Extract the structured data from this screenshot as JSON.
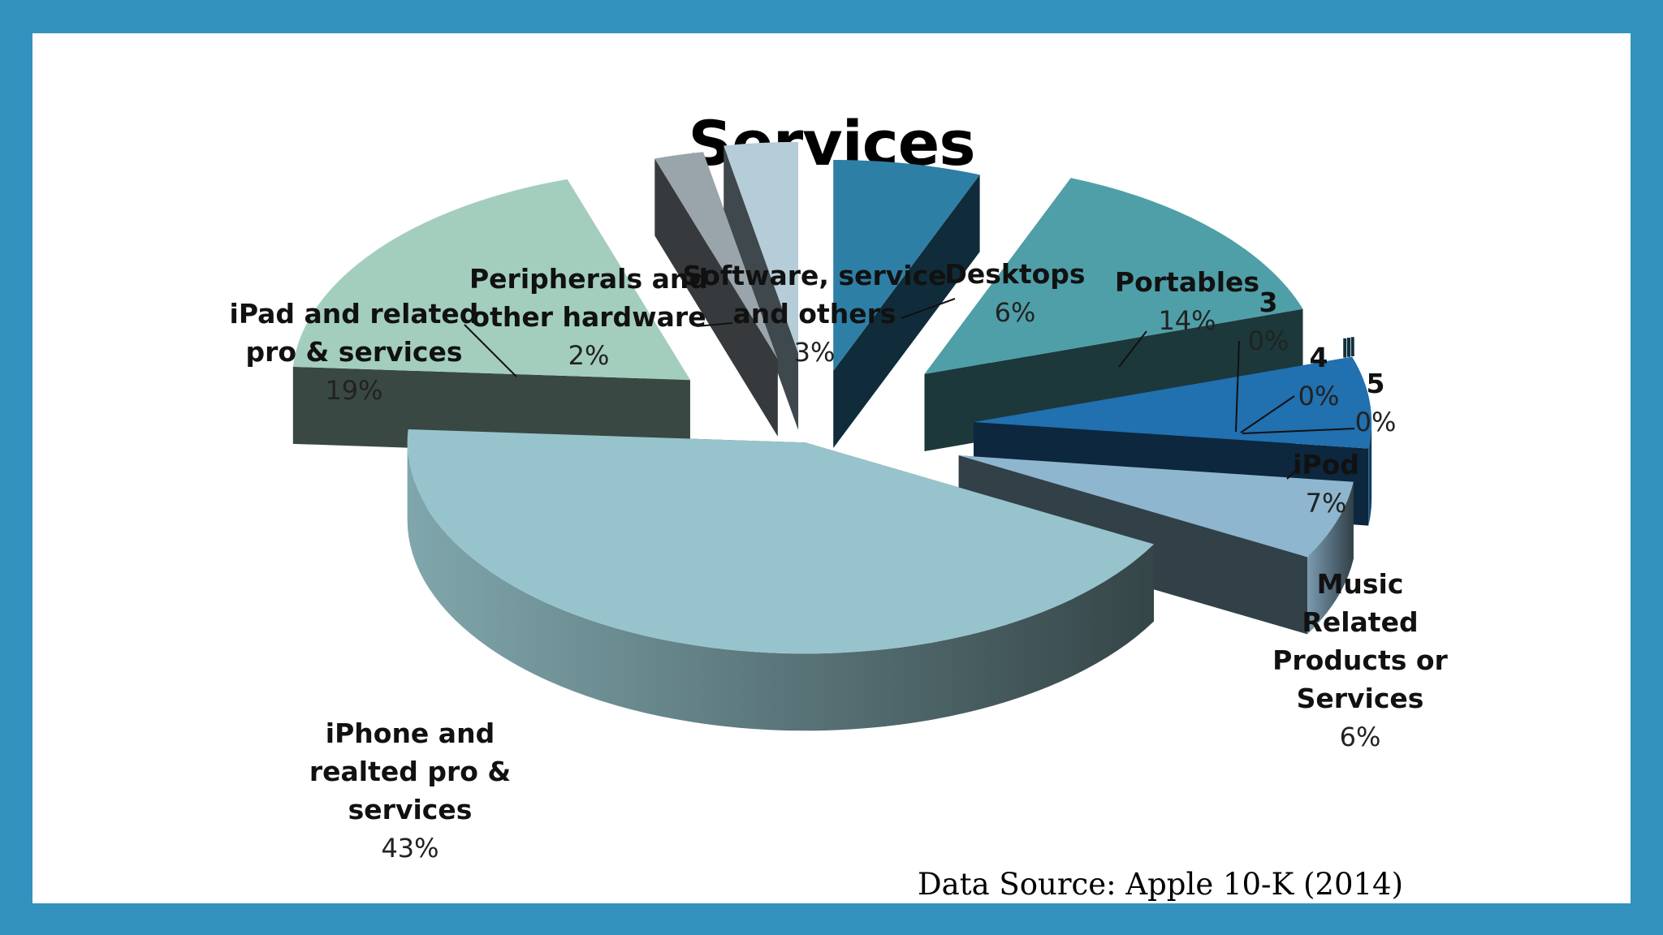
{
  "slide": {
    "title": "Services",
    "source": "Data Source: Apple 10-K (2014)"
  },
  "chart_data": {
    "type": "pie",
    "title": "Services",
    "source": "Data Source: Apple 10-K (2014)",
    "slices": [
      {
        "label": "Desktops",
        "label_lines": [
          "Desktops"
        ],
        "value": 6,
        "value_label": "6%",
        "color": "#2e7fa5"
      },
      {
        "label": "Portables",
        "label_lines": [
          "Portables"
        ],
        "value": 14,
        "value_label": "14%",
        "color": "#4f9fa8"
      },
      {
        "label": "3",
        "label_lines": [
          "3"
        ],
        "value": 0,
        "value_label": "0%",
        "color": "#1f5e78"
      },
      {
        "label": "4",
        "label_lines": [
          "4"
        ],
        "value": 0,
        "value_label": "0%",
        "color": "#1f5e78"
      },
      {
        "label": "5",
        "label_lines": [
          "5"
        ],
        "value": 0,
        "value_label": "0%",
        "color": "#1f5e78"
      },
      {
        "label": "iPod",
        "label_lines": [
          "iPod"
        ],
        "value": 7,
        "value_label": "7%",
        "color": "#2170b0"
      },
      {
        "label": "Music Related Products or Services",
        "label_lines": [
          "Music",
          "Related",
          "Products or",
          "Services"
        ],
        "value": 6,
        "value_label": "6%",
        "color": "#8fb6cf"
      },
      {
        "label": "iPhone and realted pro & services",
        "label_lines": [
          "iPhone and",
          "realted pro &",
          "services"
        ],
        "value": 43,
        "value_label": "43%",
        "color": "#97c4cc"
      },
      {
        "label": "iPad and related pro & services",
        "label_lines": [
          "iPad and related",
          "pro & services"
        ],
        "value": 19,
        "value_label": "19%",
        "color": "#a3cebe"
      },
      {
        "label": "Peripherals and other hardware",
        "label_lines": [
          "Peripherals and",
          "other hardware"
        ],
        "value": 2,
        "value_label": "2%",
        "color": "#9aa5ab"
      },
      {
        "label": "Software, service and others",
        "label_lines": [
          "Software, service",
          "and others"
        ],
        "value": 3,
        "value_label": "3%",
        "color": "#b5cdd8"
      }
    ]
  }
}
